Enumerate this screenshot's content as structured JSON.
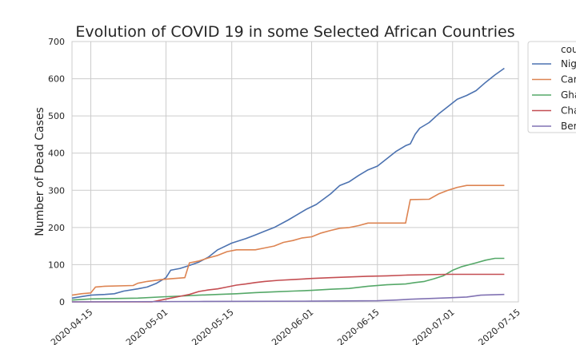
{
  "chart_data": {
    "type": "line",
    "title": "Evolution of COVID 19 in some Selected African Countries",
    "xlabel": "",
    "ylabel": "Number of Dead Cases",
    "xlim": [
      "2020-04-11",
      "2020-07-15"
    ],
    "ylim": [
      0,
      700
    ],
    "x_ticks": [
      "2020-04-15",
      "2020-05-01",
      "2020-05-15",
      "2020-06-01",
      "2020-06-15",
      "2020-07-01",
      "2020-07-15"
    ],
    "y_ticks": [
      0,
      100,
      200,
      300,
      400,
      500,
      600,
      700
    ],
    "grid": true,
    "legend": {
      "title": "cou",
      "placement": "right (outside, clipped)",
      "labels": [
        "Nig",
        "Car",
        "Gha",
        "Cha",
        "Ber"
      ]
    },
    "series": [
      {
        "name": "Nig",
        "color": "#4c72b0",
        "points": [
          [
            "2020-04-11",
            10
          ],
          [
            "2020-04-15",
            18
          ],
          [
            "2020-04-18",
            20
          ],
          [
            "2020-04-20",
            22
          ],
          [
            "2020-04-22",
            29
          ],
          [
            "2020-04-25",
            35
          ],
          [
            "2020-04-27",
            40
          ],
          [
            "2020-04-29",
            50
          ],
          [
            "2020-05-01",
            65
          ],
          [
            "2020-05-02",
            85
          ],
          [
            "2020-05-04",
            90
          ],
          [
            "2020-05-06",
            98
          ],
          [
            "2020-05-08",
            107
          ],
          [
            "2020-05-10",
            120
          ],
          [
            "2020-05-12",
            140
          ],
          [
            "2020-05-15",
            158
          ],
          [
            "2020-05-18",
            170
          ],
          [
            "2020-05-20",
            180
          ],
          [
            "2020-05-22",
            190
          ],
          [
            "2020-05-24",
            200
          ],
          [
            "2020-05-27",
            220
          ],
          [
            "2020-05-29",
            235
          ],
          [
            "2020-05-31",
            250
          ],
          [
            "2020-06-02",
            262
          ],
          [
            "2020-06-05",
            290
          ],
          [
            "2020-06-07",
            313
          ],
          [
            "2020-06-09",
            323
          ],
          [
            "2020-06-11",
            340
          ],
          [
            "2020-06-13",
            355
          ],
          [
            "2020-06-15",
            365
          ],
          [
            "2020-06-17",
            385
          ],
          [
            "2020-06-19",
            405
          ],
          [
            "2020-06-21",
            420
          ],
          [
            "2020-06-22",
            425
          ],
          [
            "2020-06-23",
            450
          ],
          [
            "2020-06-24",
            467
          ],
          [
            "2020-06-26",
            482
          ],
          [
            "2020-06-28",
            505
          ],
          [
            "2020-06-30",
            525
          ],
          [
            "2020-07-02",
            545
          ],
          [
            "2020-07-04",
            555
          ],
          [
            "2020-07-06",
            568
          ],
          [
            "2020-07-08",
            590
          ],
          [
            "2020-07-10",
            610
          ],
          [
            "2020-07-12",
            628
          ]
        ]
      },
      {
        "name": "Car",
        "color": "#dd8452",
        "points": [
          [
            "2020-04-11",
            18
          ],
          [
            "2020-04-13",
            22
          ],
          [
            "2020-04-15",
            24
          ],
          [
            "2020-04-16",
            40
          ],
          [
            "2020-04-18",
            42
          ],
          [
            "2020-04-24",
            44
          ],
          [
            "2020-04-25",
            50
          ],
          [
            "2020-04-27",
            55
          ],
          [
            "2020-04-30",
            60
          ],
          [
            "2020-05-02",
            62
          ],
          [
            "2020-05-05",
            65
          ],
          [
            "2020-05-06",
            105
          ],
          [
            "2020-05-08",
            110
          ],
          [
            "2020-05-10",
            118
          ],
          [
            "2020-05-12",
            125
          ],
          [
            "2020-05-14",
            135
          ],
          [
            "2020-05-16",
            140
          ],
          [
            "2020-05-20",
            140
          ],
          [
            "2020-05-22",
            145
          ],
          [
            "2020-05-24",
            150
          ],
          [
            "2020-05-26",
            160
          ],
          [
            "2020-05-28",
            165
          ],
          [
            "2020-05-30",
            172
          ],
          [
            "2020-06-01",
            175
          ],
          [
            "2020-06-03",
            185
          ],
          [
            "2020-06-05",
            192
          ],
          [
            "2020-06-07",
            198
          ],
          [
            "2020-06-09",
            200
          ],
          [
            "2020-06-11",
            205
          ],
          [
            "2020-06-13",
            212
          ],
          [
            "2020-06-21",
            212
          ],
          [
            "2020-06-22",
            275
          ],
          [
            "2020-06-26",
            276
          ],
          [
            "2020-06-28",
            290
          ],
          [
            "2020-06-30",
            300
          ],
          [
            "2020-07-02",
            308
          ],
          [
            "2020-07-04",
            313
          ],
          [
            "2020-07-12",
            313
          ]
        ]
      },
      {
        "name": "Gha",
        "color": "#55a868",
        "points": [
          [
            "2020-04-11",
            5
          ],
          [
            "2020-04-15",
            8
          ],
          [
            "2020-04-25",
            10
          ],
          [
            "2020-05-01",
            14
          ],
          [
            "2020-05-05",
            16
          ],
          [
            "2020-05-08",
            18
          ],
          [
            "2020-05-12",
            20
          ],
          [
            "2020-05-16",
            22
          ],
          [
            "2020-05-20",
            25
          ],
          [
            "2020-05-24",
            27
          ],
          [
            "2020-05-28",
            29
          ],
          [
            "2020-06-01",
            31
          ],
          [
            "2020-06-05",
            34
          ],
          [
            "2020-06-09",
            36
          ],
          [
            "2020-06-13",
            42
          ],
          [
            "2020-06-17",
            46
          ],
          [
            "2020-06-21",
            48
          ],
          [
            "2020-06-23",
            52
          ],
          [
            "2020-06-25",
            55
          ],
          [
            "2020-06-27",
            62
          ],
          [
            "2020-06-29",
            70
          ],
          [
            "2020-07-01",
            85
          ],
          [
            "2020-07-03",
            95
          ],
          [
            "2020-07-06",
            105
          ],
          [
            "2020-07-08",
            112
          ],
          [
            "2020-07-10",
            117
          ],
          [
            "2020-07-12",
            117
          ]
        ]
      },
      {
        "name": "Cha",
        "color": "#c44e52",
        "points": [
          [
            "2020-04-11",
            0
          ],
          [
            "2020-04-28",
            0
          ],
          [
            "2020-04-30",
            5
          ],
          [
            "2020-05-02",
            10
          ],
          [
            "2020-05-04",
            15
          ],
          [
            "2020-05-06",
            20
          ],
          [
            "2020-05-08",
            28
          ],
          [
            "2020-05-10",
            32
          ],
          [
            "2020-05-12",
            35
          ],
          [
            "2020-05-14",
            40
          ],
          [
            "2020-05-16",
            45
          ],
          [
            "2020-05-18",
            48
          ],
          [
            "2020-05-20",
            52
          ],
          [
            "2020-05-22",
            55
          ],
          [
            "2020-05-25",
            58
          ],
          [
            "2020-05-28",
            60
          ],
          [
            "2020-06-01",
            63
          ],
          [
            "2020-06-05",
            65
          ],
          [
            "2020-06-09",
            67
          ],
          [
            "2020-06-13",
            69
          ],
          [
            "2020-06-17",
            70
          ],
          [
            "2020-06-21",
            72
          ],
          [
            "2020-06-25",
            73
          ],
          [
            "2020-06-30",
            74
          ],
          [
            "2020-07-12",
            74
          ]
        ]
      },
      {
        "name": "Ber",
        "color": "#8172b3",
        "points": [
          [
            "2020-04-11",
            0
          ],
          [
            "2020-05-08",
            1
          ],
          [
            "2020-06-01",
            2
          ],
          [
            "2020-06-15",
            3
          ],
          [
            "2020-06-19",
            5
          ],
          [
            "2020-06-22",
            7
          ],
          [
            "2020-06-26",
            9
          ],
          [
            "2020-06-30",
            11
          ],
          [
            "2020-07-04",
            13
          ],
          [
            "2020-07-07",
            18
          ],
          [
            "2020-07-12",
            20
          ]
        ]
      }
    ]
  }
}
